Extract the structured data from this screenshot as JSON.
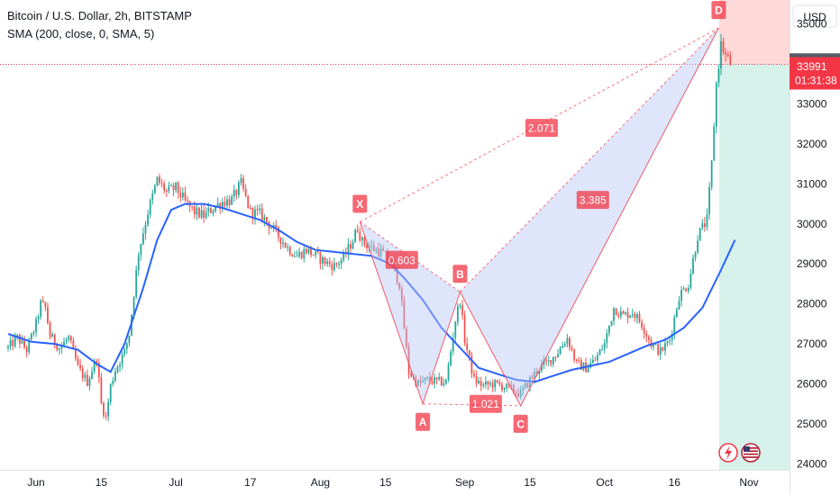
{
  "legend": {
    "title": "Bitcoin / U.S. Dollar, 2h, BITSTAMP",
    "indicator": "SMA (200, close, 0, SMA, 5)"
  },
  "currency_label": "USD",
  "colors": {
    "up": "#26a69a",
    "down": "#ef5350",
    "sma": "#2962ff",
    "pattern_line": "#f23645",
    "pattern_fill": "#b7c6f5",
    "price_badge": "#f23645",
    "last_badge": "#555a66",
    "stop_zone": "#ffd1d1",
    "target_zone": "#d3f0e9"
  },
  "chart_data": {
    "type": "candlestick",
    "title": "",
    "y_range": [
      23850,
      35600
    ],
    "y_ticks": [
      "24000",
      "25000",
      "26000",
      "27000",
      "28000",
      "29000",
      "30000",
      "31000",
      "32000",
      "33000",
      "35000"
    ],
    "x_range": [
      0,
      216
    ],
    "x_ticks": [
      {
        "label": "Jun",
        "day": 1
      },
      {
        "label": "15",
        "day": 15
      },
      {
        "label": "Jul",
        "day": 31
      },
      {
        "label": "17",
        "day": 47
      },
      {
        "label": "Aug",
        "day": 62
      },
      {
        "label": "15",
        "day": 76
      },
      {
        "label": "Sep",
        "day": 93
      },
      {
        "label": "15",
        "day": 107
      },
      {
        "label": "Oct",
        "day": 123
      },
      {
        "label": "16",
        "day": 138
      },
      {
        "label": "Nov",
        "day": 154
      }
    ],
    "price_path": [
      [
        -5,
        26900
      ],
      [
        -3,
        27150
      ],
      [
        -1,
        26850
      ],
      [
        1,
        27500
      ],
      [
        2,
        28000
      ],
      [
        3,
        27900
      ],
      [
        4,
        27200
      ],
      [
        6,
        26900
      ],
      [
        8,
        27150
      ],
      [
        10,
        26400
      ],
      [
        12,
        26050
      ],
      [
        14,
        26650
      ],
      [
        15,
        25500
      ],
      [
        16,
        25150
      ],
      [
        17,
        25950
      ],
      [
        18,
        26350
      ],
      [
        20,
        26800
      ],
      [
        21,
        27250
      ],
      [
        23,
        29300
      ],
      [
        25,
        30300
      ],
      [
        27,
        31100
      ],
      [
        29,
        30800
      ],
      [
        31,
        30900
      ],
      [
        33,
        30550
      ],
      [
        35,
        30300
      ],
      [
        37,
        30200
      ],
      [
        39,
        30400
      ],
      [
        41,
        30550
      ],
      [
        43,
        30600
      ],
      [
        45,
        31000
      ],
      [
        47,
        30300
      ],
      [
        49,
        30250
      ],
      [
        51,
        30000
      ],
      [
        53,
        29700
      ],
      [
        55,
        29400
      ],
      [
        57,
        29200
      ],
      [
        59,
        29350
      ],
      [
        61,
        29200
      ],
      [
        63,
        29050
      ],
      [
        65,
        28950
      ],
      [
        67,
        29150
      ],
      [
        69,
        29600
      ],
      [
        70,
        29900
      ],
      [
        71,
        29550
      ],
      [
        73,
        29400
      ],
      [
        75,
        29300
      ],
      [
        77,
        29100
      ],
      [
        79,
        28500
      ],
      [
        81,
        26300
      ],
      [
        83,
        26000
      ],
      [
        85,
        26100
      ],
      [
        87,
        26050
      ],
      [
        89,
        26050
      ],
      [
        91,
        27600
      ],
      [
        92,
        28100
      ],
      [
        93,
        27100
      ],
      [
        95,
        26100
      ],
      [
        97,
        25950
      ],
      [
        99,
        26000
      ],
      [
        101,
        25950
      ],
      [
        103,
        25850
      ],
      [
        105,
        25750
      ],
      [
        107,
        26100
      ],
      [
        109,
        26400
      ],
      [
        111,
        26550
      ],
      [
        113,
        26800
      ],
      [
        115,
        27150
      ],
      [
        117,
        26500
      ],
      [
        119,
        26400
      ],
      [
        121,
        26600
      ],
      [
        123,
        27000
      ],
      [
        125,
        27900
      ],
      [
        127,
        27700
      ],
      [
        129,
        27800
      ],
      [
        131,
        27500
      ],
      [
        133,
        27000
      ],
      [
        135,
        26800
      ],
      [
        137,
        27100
      ],
      [
        139,
        28200
      ],
      [
        141,
        28500
      ],
      [
        143,
        29700
      ],
      [
        145,
        30100
      ],
      [
        146,
        31500
      ],
      [
        147,
        33500
      ],
      [
        148,
        34500
      ],
      [
        149,
        34200
      ],
      [
        150,
        34000
      ]
    ],
    "sma_path": [
      [
        -5,
        27250
      ],
      [
        0,
        27050
      ],
      [
        5,
        27000
      ],
      [
        10,
        26850
      ],
      [
        14,
        26500
      ],
      [
        17,
        26300
      ],
      [
        20,
        27000
      ],
      [
        24,
        28400
      ],
      [
        27,
        29600
      ],
      [
        30,
        30350
      ],
      [
        33,
        30500
      ],
      [
        37,
        30500
      ],
      [
        41,
        30400
      ],
      [
        45,
        30250
      ],
      [
        49,
        30100
      ],
      [
        53,
        29850
      ],
      [
        57,
        29550
      ],
      [
        61,
        29350
      ],
      [
        65,
        29300
      ],
      [
        69,
        29250
      ],
      [
        73,
        29200
      ],
      [
        77,
        29000
      ],
      [
        80,
        28650
      ],
      [
        84,
        28100
      ],
      [
        88,
        27400
      ],
      [
        92,
        26900
      ],
      [
        96,
        26400
      ],
      [
        100,
        26250
      ],
      [
        104,
        26100
      ],
      [
        108,
        26050
      ],
      [
        112,
        26200
      ],
      [
        116,
        26350
      ],
      [
        120,
        26450
      ],
      [
        124,
        26550
      ],
      [
        128,
        26750
      ],
      [
        132,
        26950
      ],
      [
        136,
        27100
      ],
      [
        140,
        27400
      ],
      [
        144,
        27900
      ],
      [
        148,
        28850
      ],
      [
        151,
        29600
      ]
    ],
    "pattern": {
      "type": "harmonic XABCD",
      "points": [
        {
          "label": "X",
          "day": 70.5,
          "price": 30050
        },
        {
          "label": "A",
          "day": 84,
          "price": 25500
        },
        {
          "label": "B",
          "day": 92,
          "price": 28300
        },
        {
          "label": "C",
          "day": 105,
          "price": 25450
        },
        {
          "label": "D",
          "day": 147.5,
          "price": 34900
        }
      ],
      "ratios": [
        {
          "label": "0.603",
          "day": 79.5,
          "price": 29100
        },
        {
          "label": "1.021",
          "day": 97.5,
          "price": 25500
        },
        {
          "label": "2.071",
          "day": 109.5,
          "price": 32400
        },
        {
          "label": "3.385",
          "day": 120.5,
          "price": 30600
        }
      ]
    },
    "position": {
      "entry": 33991,
      "stop": 35600,
      "target": 23850
    },
    "last_price": "34041",
    "current_price": "33991",
    "countdown": "01:31:38"
  }
}
